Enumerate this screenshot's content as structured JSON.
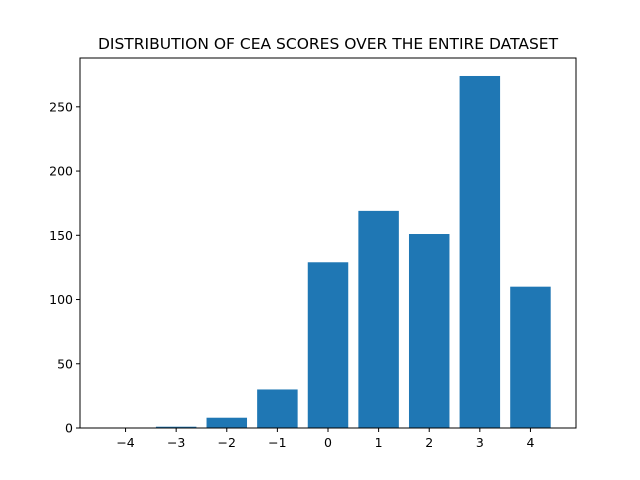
{
  "chart_data": {
    "type": "bar",
    "title": "DISTRIBUTION OF CEA SCORES OVER THE ENTIRE DATASET",
    "xlabel": "",
    "ylabel": "",
    "categories": [
      "−4",
      "−3",
      "−2",
      "−1",
      "0",
      "1",
      "2",
      "3",
      "4"
    ],
    "x": [
      -4,
      -3,
      -2,
      -1,
      0,
      1,
      2,
      3,
      4
    ],
    "values": [
      0,
      1,
      8,
      30,
      129,
      169,
      151,
      274,
      110
    ],
    "yticks": [
      0,
      50,
      100,
      150,
      200,
      250
    ],
    "ylim": [
      0,
      288
    ],
    "xlim": [
      -4.9,
      4.9
    ],
    "bar_color": "#1f77b4",
    "grid": false,
    "legend": "none"
  }
}
